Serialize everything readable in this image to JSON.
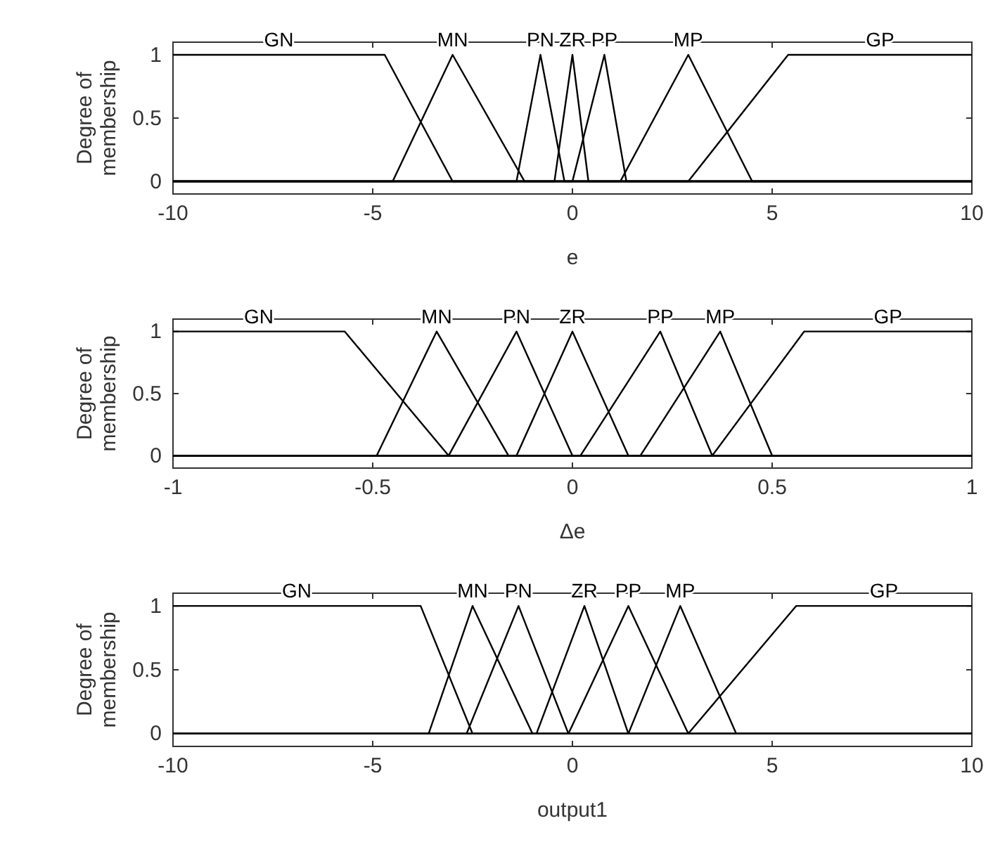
{
  "chart_data": [
    {
      "type": "line",
      "xlabel": "e",
      "ylabel": "Degree of membership",
      "xlim": [
        -10,
        10
      ],
      "ylim": [
        -0.1,
        1.1
      ],
      "xticks": [
        -10,
        -5,
        0,
        5,
        10
      ],
      "yticks": [
        0,
        0.5,
        1
      ],
      "grid": false,
      "legend": false,
      "marker": "none",
      "line_style": "solid",
      "series": [
        {
          "name": "GN",
          "color": "#000000",
          "x": [
            -10,
            -4.7,
            -3,
            10
          ],
          "values": [
            1,
            1,
            0,
            0
          ]
        },
        {
          "name": "MN",
          "color": "#000000",
          "x": [
            -10,
            -4.5,
            -3,
            -1.2,
            10
          ],
          "values": [
            0,
            0,
            1,
            0,
            0
          ]
        },
        {
          "name": "PN",
          "color": "#000000",
          "x": [
            -10,
            -1.4,
            -0.8,
            -0.2,
            10
          ],
          "values": [
            0,
            0,
            1,
            0,
            0
          ]
        },
        {
          "name": "ZR",
          "color": "#000000",
          "x": [
            -10,
            -0.45,
            0,
            0.4,
            10
          ],
          "values": [
            0,
            0,
            1,
            0,
            0
          ]
        },
        {
          "name": "PP",
          "color": "#000000",
          "x": [
            -10,
            0,
            0.8,
            1.35,
            10
          ],
          "values": [
            0,
            0,
            1,
            0,
            0
          ]
        },
        {
          "name": "MP",
          "color": "#000000",
          "x": [
            -10,
            1.2,
            2.9,
            4.5,
            10
          ],
          "values": [
            0,
            0,
            1,
            0,
            0
          ]
        },
        {
          "name": "GP",
          "color": "#000000",
          "x": [
            -10,
            2.9,
            5.4,
            10
          ],
          "values": [
            0,
            0,
            1,
            1
          ]
        }
      ]
    },
    {
      "type": "line",
      "xlabel": "Δe",
      "ylabel": "Degree of membership",
      "xlim": [
        -1,
        1
      ],
      "ylim": [
        -0.1,
        1.1
      ],
      "xticks": [
        -1,
        -0.5,
        0,
        0.5,
        1
      ],
      "yticks": [
        0,
        0.5,
        1
      ],
      "grid": false,
      "legend": false,
      "marker": "none",
      "line_style": "solid",
      "series": [
        {
          "name": "GN",
          "color": "#000000",
          "x": [
            -1,
            -0.57,
            -0.31,
            1
          ],
          "values": [
            1,
            1,
            0,
            0
          ]
        },
        {
          "name": "MN",
          "color": "#000000",
          "x": [
            -1,
            -0.49,
            -0.34,
            -0.16,
            1
          ],
          "values": [
            0,
            0,
            1,
            0,
            0
          ]
        },
        {
          "name": "PN",
          "color": "#000000",
          "x": [
            -1,
            -0.31,
            -0.14,
            0,
            1
          ],
          "values": [
            0,
            0,
            1,
            0,
            0
          ]
        },
        {
          "name": "ZR",
          "color": "#000000",
          "x": [
            -1,
            -0.14,
            0,
            0.14,
            1
          ],
          "values": [
            0,
            0,
            1,
            0,
            0
          ]
        },
        {
          "name": "PP",
          "color": "#000000",
          "x": [
            -1,
            0.02,
            0.22,
            0.35,
            1
          ],
          "values": [
            0,
            0,
            1,
            0,
            0
          ]
        },
        {
          "name": "MP",
          "color": "#000000",
          "x": [
            -1,
            0.17,
            0.37,
            0.5,
            1
          ],
          "values": [
            0,
            0,
            1,
            0,
            0
          ]
        },
        {
          "name": "GP",
          "color": "#000000",
          "x": [
            -1,
            0.35,
            0.58,
            1
          ],
          "values": [
            0,
            0,
            1,
            1
          ]
        }
      ]
    },
    {
      "type": "line",
      "xlabel": "output1",
      "ylabel": "Degree of membership",
      "xlim": [
        -10,
        10
      ],
      "ylim": [
        -0.1,
        1.1
      ],
      "xticks": [
        -10,
        -5,
        0,
        5,
        10
      ],
      "yticks": [
        0,
        0.5,
        1
      ],
      "grid": false,
      "legend": false,
      "marker": "none",
      "line_style": "solid",
      "series": [
        {
          "name": "GN",
          "color": "#000000",
          "x": [
            -10,
            -3.8,
            -2.5,
            10
          ],
          "values": [
            1,
            1,
            0,
            0
          ]
        },
        {
          "name": "MN",
          "color": "#000000",
          "x": [
            -10,
            -3.6,
            -2.5,
            -1,
            10
          ],
          "values": [
            0,
            0,
            1,
            0,
            0
          ]
        },
        {
          "name": "PN",
          "color": "#000000",
          "x": [
            -10,
            -2.65,
            -1.35,
            -0.1,
            10
          ],
          "values": [
            0,
            0,
            1,
            0,
            0
          ]
        },
        {
          "name": "ZR",
          "color": "#000000",
          "x": [
            -10,
            -0.9,
            0.3,
            1.4,
            10
          ],
          "values": [
            0,
            0,
            1,
            0,
            0
          ]
        },
        {
          "name": "PP",
          "color": "#000000",
          "x": [
            -10,
            -0.1,
            1.4,
            2.9,
            10
          ],
          "values": [
            0,
            0,
            1,
            0,
            0
          ]
        },
        {
          "name": "MP",
          "color": "#000000",
          "x": [
            -10,
            1.4,
            2.7,
            4.1,
            10
          ],
          "values": [
            0,
            0,
            1,
            0,
            0
          ]
        },
        {
          "name": "GP",
          "color": "#000000",
          "x": [
            -10,
            2.9,
            5.6,
            10
          ],
          "values": [
            0,
            0,
            1,
            1
          ]
        }
      ]
    }
  ]
}
